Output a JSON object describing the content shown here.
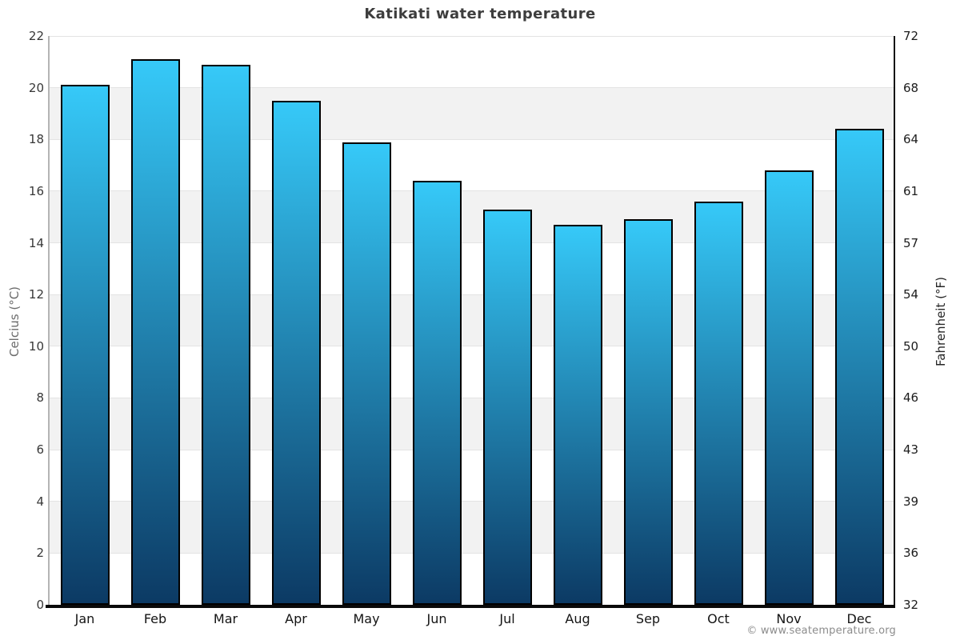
{
  "chart_data": {
    "type": "bar",
    "title": "Katikati water temperature",
    "categories": [
      "Jan",
      "Feb",
      "Mar",
      "Apr",
      "May",
      "Jun",
      "Jul",
      "Aug",
      "Sep",
      "Oct",
      "Nov",
      "Dec"
    ],
    "values": [
      20.1,
      21.1,
      20.9,
      19.5,
      17.9,
      16.4,
      15.3,
      14.7,
      14.9,
      15.6,
      16.8,
      18.4
    ],
    "value_unit": "°C",
    "ylabel_left": "Celcius (°C)",
    "ylabel_right": "Fahrenheit (°F)",
    "ylim": [
      0,
      22
    ],
    "celsius_ticks": [
      22,
      20,
      18,
      16,
      14,
      12,
      10,
      8,
      6,
      4,
      2,
      0
    ],
    "fahrenheit_tick_labels": [
      "72",
      "68",
      "64",
      "61",
      "57",
      "54",
      "50",
      "46",
      "43",
      "39",
      "36",
      "32"
    ],
    "gray_bands": [
      [
        20,
        18
      ],
      [
        16,
        14
      ],
      [
        12,
        10
      ],
      [
        8,
        6
      ],
      [
        4,
        2
      ]
    ],
    "grid": "horizontal",
    "legend": "none",
    "attribution": "© www.seatemperature.org",
    "colors": {
      "bar_top": "#36c9f8",
      "bar_bottom": "#0c3a64",
      "bar_border": "#000000",
      "band": "#f2f2f2",
      "gridline": "#e3e3e3",
      "title": "#3d3d3d"
    }
  }
}
